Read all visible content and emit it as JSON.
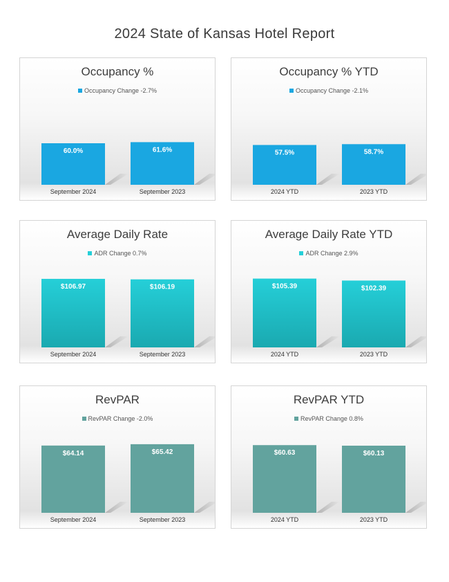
{
  "page": {
    "title": "2024 State of Kansas Hotel Report"
  },
  "chart_data": [
    {
      "type": "bar",
      "title": "Occupancy %",
      "legend": "Occupancy Change -2.7%",
      "categories": [
        "September 2024",
        "September 2023"
      ],
      "values": [
        60.0,
        61.6
      ],
      "data_labels": [
        "60.0%",
        "61.6%"
      ],
      "ylim": [
        0,
        100
      ],
      "color": "#1aa7e1",
      "color_dark": "#1aa7e1",
      "legend_placement": "top"
    },
    {
      "type": "bar",
      "title": "Occupancy % YTD",
      "legend": "Occupancy Change -2.1%",
      "categories": [
        "2024 YTD",
        "2023 YTD"
      ],
      "values": [
        57.5,
        58.7
      ],
      "data_labels": [
        "57.5%",
        "58.7%"
      ],
      "ylim": [
        0,
        100
      ],
      "color": "#1aa7e1",
      "color_dark": "#1aa7e1",
      "legend_placement": "top"
    },
    {
      "type": "bar",
      "title": "Average Daily Rate",
      "legend": "ADR Change 0.7%",
      "categories": [
        "September 2024",
        "September 2023"
      ],
      "values": [
        106.97,
        106.19
      ],
      "data_labels": [
        "$106.97",
        "$106.19"
      ],
      "ylim": [
        0,
        108
      ],
      "color": "#25cfd8",
      "color_dark": "#1aa9b0",
      "legend_placement": "top"
    },
    {
      "type": "bar",
      "title": "Average Daily Rate YTD",
      "legend": "ADR Change 2.9%",
      "categories": [
        "2024 YTD",
        "2023 YTD"
      ],
      "values": [
        105.39,
        102.39
      ],
      "data_labels": [
        "$105.39",
        "$102.39"
      ],
      "ylim": [
        0,
        106
      ],
      "color": "#25cfd8",
      "color_dark": "#1aa9b0",
      "legend_placement": "top"
    },
    {
      "type": "bar",
      "title": "RevPAR",
      "legend": "RevPAR Change -2.0%",
      "categories": [
        "September 2024",
        "September 2023"
      ],
      "values": [
        64.14,
        65.42
      ],
      "data_labels": [
        "$64.14",
        "$65.42"
      ],
      "ylim": [
        0,
        66
      ],
      "color": "#62a39e",
      "color_dark": "#62a39e",
      "legend_placement": "top"
    },
    {
      "type": "bar",
      "title": "RevPAR YTD",
      "legend": "RevPAR Change 0.8%",
      "categories": [
        "2024 YTD",
        "2023 YTD"
      ],
      "values": [
        60.63,
        60.13
      ],
      "data_labels": [
        "$60.63",
        "$60.13"
      ],
      "ylim": [
        0,
        62
      ],
      "color": "#62a39e",
      "color_dark": "#62a39e",
      "legend_placement": "top"
    }
  ]
}
